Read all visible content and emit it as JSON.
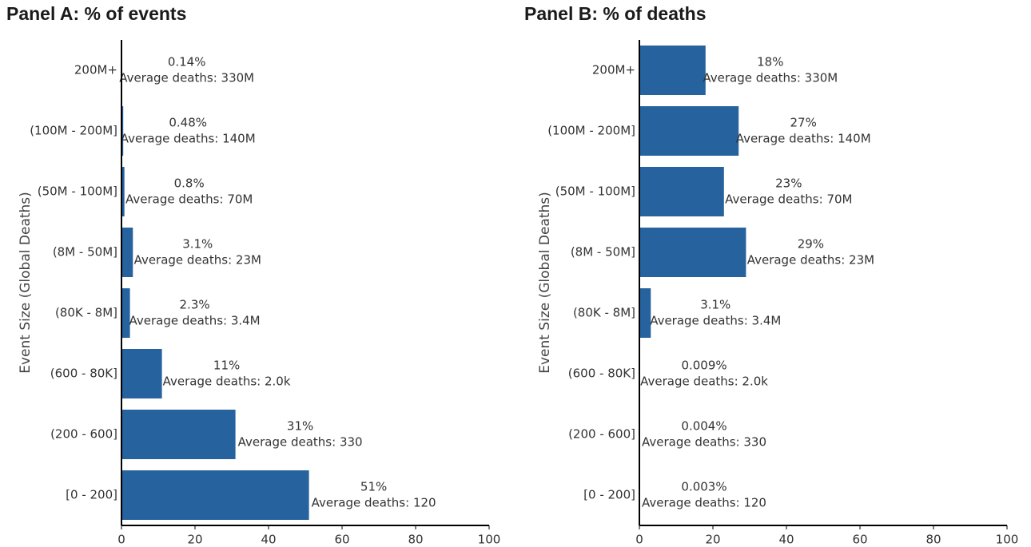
{
  "chart_data": [
    {
      "type": "bar",
      "orientation": "horizontal",
      "title": "Panel A: % of events",
      "ylabel": "Event Size (Global Deaths)",
      "xlabel": "",
      "categories": [
        "200M+",
        "(100M - 200M]",
        "(50M - 100M]",
        "(8M - 50M]",
        "(80K - 8M]",
        "(600 - 80K]",
        "(200 - 600]",
        "[0 - 200]"
      ],
      "values": [
        0.14,
        0.48,
        0.8,
        3.1,
        2.3,
        11,
        31,
        51
      ],
      "value_labels": [
        "0.14%",
        "0.48%",
        "0.8%",
        "3.1%",
        "2.3%",
        "11%",
        "31%",
        "51%"
      ],
      "avg_labels": [
        "Average deaths: 330M",
        "Average deaths: 140M",
        "Average deaths: 70M",
        "Average deaths: 23M",
        "Average deaths: 3.4M",
        "Average deaths: 2.0k",
        "Average deaths: 330",
        "Average deaths: 120"
      ],
      "xlim": [
        0,
        100
      ],
      "xticks": [
        0,
        20,
        40,
        60,
        80,
        100
      ],
      "bar_color": "#25629e",
      "grid": false
    },
    {
      "type": "bar",
      "orientation": "horizontal",
      "title": "Panel B: % of deaths",
      "ylabel": "Event Size (Global Deaths)",
      "xlabel": "",
      "categories": [
        "200M+",
        "(100M - 200M]",
        "(50M - 100M]",
        "(8M - 50M]",
        "(80K - 8M]",
        "(600 - 80K]",
        "(200 - 600]",
        "[0 - 200]"
      ],
      "values": [
        18,
        27,
        23,
        29,
        3.1,
        0.009,
        0.004,
        0.003
      ],
      "value_labels": [
        "18%",
        "27%",
        "23%",
        "29%",
        "3.1%",
        "0.009%",
        "0.004%",
        "0.003%"
      ],
      "avg_labels": [
        "Average deaths: 330M",
        "Average deaths: 140M",
        "Average deaths: 70M",
        "Average deaths: 23M",
        "Average deaths: 3.4M",
        "Average deaths: 2.0k",
        "Average deaths: 330",
        "Average deaths: 120"
      ],
      "xlim": [
        0,
        100
      ],
      "xticks": [
        0,
        20,
        40,
        60,
        80,
        100
      ],
      "bar_color": "#25629e",
      "grid": false
    }
  ]
}
